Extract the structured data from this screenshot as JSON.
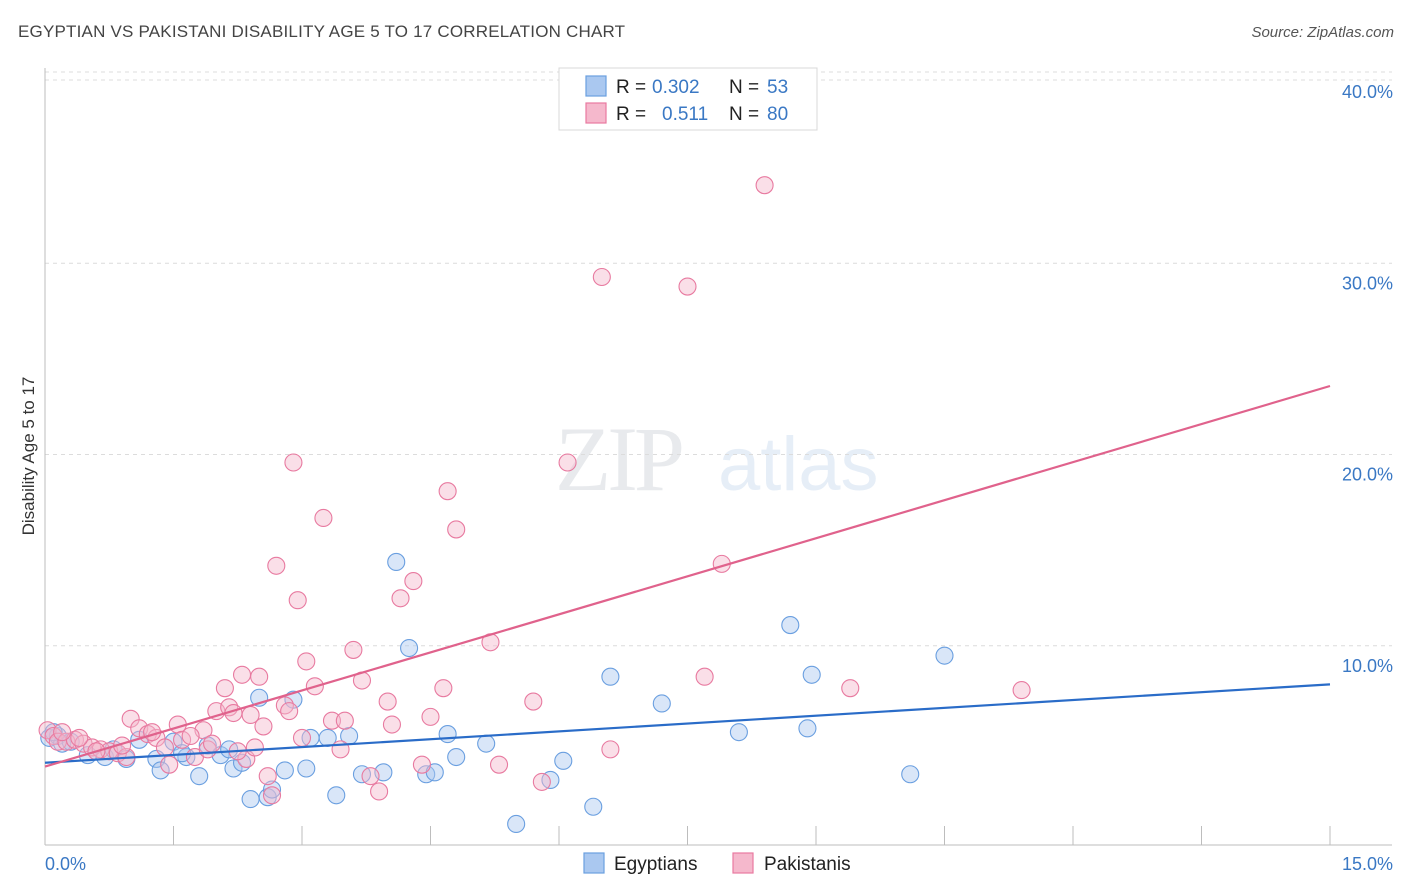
{
  "chart_data": {
    "type": "scatter",
    "title": "EGYPTIAN VS PAKISTANI DISABILITY AGE 5 TO 17 CORRELATION CHART",
    "source": "Source: ZipAtlas.com",
    "xlabel": "",
    "ylabel": "Disability Age 5 to 17",
    "xlim": [
      0,
      15
    ],
    "ylim": [
      0,
      40
    ],
    "x_tick_labels": [
      "0.0%",
      "15.0%"
    ],
    "y_ticks": [
      10,
      20,
      30,
      40
    ],
    "y_tick_labels": [
      "10.0%",
      "20.0%",
      "30.0%",
      "40.0%"
    ],
    "watermark": "ZIPatlas",
    "legend": {
      "rows": [
        {
          "r_label": "R =",
          "r_value": "0.302",
          "n_label": "N =",
          "n_value": "53"
        },
        {
          "r_label": "R =",
          "r_value": "0.511",
          "n_label": "N =",
          "n_value": "80"
        }
      ]
    },
    "bottom_legend": [
      "Egyptians",
      "Pakistanis"
    ],
    "series": [
      {
        "name": "Egyptians",
        "color": "#6a9fe0",
        "fill": "#aac8f0",
        "trend_color": "#2a6cc8",
        "trend": [
          [
            0,
            4.3
          ],
          [
            15,
            8.4
          ]
        ],
        "points": [
          [
            0.05,
            5.6
          ],
          [
            0.15,
            5.7
          ],
          [
            0.2,
            5.3
          ],
          [
            0.3,
            5.4
          ],
          [
            0.5,
            4.7
          ],
          [
            0.7,
            4.6
          ],
          [
            0.8,
            5.0
          ],
          [
            0.95,
            4.5
          ],
          [
            1.1,
            5.5
          ],
          [
            1.3,
            4.5
          ],
          [
            1.35,
            3.9
          ],
          [
            1.5,
            5.4
          ],
          [
            1.65,
            4.6
          ],
          [
            1.8,
            3.6
          ],
          [
            1.9,
            5.2
          ],
          [
            2.05,
            4.7
          ],
          [
            2.2,
            4.0
          ],
          [
            2.3,
            4.3
          ],
          [
            2.4,
            2.4
          ],
          [
            2.5,
            7.7
          ],
          [
            2.6,
            2.5
          ],
          [
            2.65,
            2.9
          ],
          [
            2.8,
            3.9
          ],
          [
            2.9,
            7.6
          ],
          [
            3.05,
            4.0
          ],
          [
            3.1,
            5.6
          ],
          [
            3.3,
            5.6
          ],
          [
            3.4,
            2.6
          ],
          [
            3.55,
            5.7
          ],
          [
            3.7,
            3.7
          ],
          [
            3.95,
            3.8
          ],
          [
            4.1,
            14.8
          ],
          [
            4.25,
            10.3
          ],
          [
            4.45,
            3.7
          ],
          [
            4.55,
            3.8
          ],
          [
            4.7,
            5.8
          ],
          [
            4.8,
            4.6
          ],
          [
            5.15,
            5.3
          ],
          [
            5.5,
            1.1
          ],
          [
            5.9,
            3.4
          ],
          [
            6.05,
            4.4
          ],
          [
            6.4,
            2.0
          ],
          [
            6.6,
            8.8
          ],
          [
            7.2,
            7.4
          ],
          [
            8.1,
            5.9
          ],
          [
            8.7,
            11.5
          ],
          [
            8.9,
            6.1
          ],
          [
            8.95,
            8.9
          ],
          [
            10.1,
            3.7
          ],
          [
            10.5,
            9.9
          ],
          [
            0.1,
            5.9
          ],
          [
            1.6,
            4.8
          ],
          [
            2.15,
            5.0
          ]
        ]
      },
      {
        "name": "Pakistanis",
        "color": "#e87aa0",
        "fill": "#f5b8cc",
        "trend_color": "#e0628c",
        "trend": [
          [
            0,
            4.1
          ],
          [
            15,
            24.0
          ]
        ],
        "points": [
          [
            0.03,
            6.0
          ],
          [
            0.1,
            5.7
          ],
          [
            0.15,
            5.4
          ],
          [
            0.25,
            5.4
          ],
          [
            0.35,
            5.5
          ],
          [
            0.45,
            5.3
          ],
          [
            0.55,
            5.1
          ],
          [
            0.65,
            5.0
          ],
          [
            0.75,
            4.9
          ],
          [
            0.85,
            4.8
          ],
          [
            0.95,
            4.6
          ],
          [
            1.0,
            6.6
          ],
          [
            1.1,
            6.1
          ],
          [
            1.2,
            5.8
          ],
          [
            1.3,
            5.6
          ],
          [
            1.4,
            5.1
          ],
          [
            1.45,
            4.2
          ],
          [
            1.55,
            6.3
          ],
          [
            1.6,
            5.5
          ],
          [
            1.75,
            4.6
          ],
          [
            1.85,
            6.0
          ],
          [
            1.9,
            5.0
          ],
          [
            1.95,
            5.3
          ],
          [
            2.0,
            7.0
          ],
          [
            2.1,
            8.2
          ],
          [
            2.15,
            7.2
          ],
          [
            2.2,
            6.9
          ],
          [
            2.3,
            8.9
          ],
          [
            2.35,
            4.5
          ],
          [
            2.4,
            6.8
          ],
          [
            2.5,
            8.8
          ],
          [
            2.55,
            6.2
          ],
          [
            2.6,
            3.6
          ],
          [
            2.65,
            2.6
          ],
          [
            2.7,
            14.6
          ],
          [
            2.8,
            7.3
          ],
          [
            2.85,
            7.0
          ],
          [
            2.9,
            20.0
          ],
          [
            2.95,
            12.8
          ],
          [
            3.05,
            9.6
          ],
          [
            3.15,
            8.3
          ],
          [
            3.25,
            17.1
          ],
          [
            3.35,
            6.5
          ],
          [
            3.5,
            6.5
          ],
          [
            3.6,
            10.2
          ],
          [
            3.7,
            8.6
          ],
          [
            3.8,
            3.6
          ],
          [
            3.9,
            2.8
          ],
          [
            4.0,
            7.5
          ],
          [
            4.05,
            6.3
          ],
          [
            4.15,
            12.9
          ],
          [
            4.3,
            13.8
          ],
          [
            4.4,
            4.2
          ],
          [
            4.5,
            6.7
          ],
          [
            4.65,
            8.2
          ],
          [
            4.7,
            18.5
          ],
          [
            4.8,
            16.5
          ],
          [
            5.2,
            10.6
          ],
          [
            5.3,
            4.2
          ],
          [
            5.7,
            7.5
          ],
          [
            5.8,
            3.3
          ],
          [
            6.1,
            20.0
          ],
          [
            6.5,
            29.7
          ],
          [
            6.6,
            5.0
          ],
          [
            7.5,
            29.2
          ],
          [
            7.7,
            8.8
          ],
          [
            7.9,
            14.7
          ],
          [
            8.4,
            34.5
          ],
          [
            9.4,
            8.2
          ],
          [
            11.4,
            8.1
          ],
          [
            0.2,
            5.9
          ],
          [
            0.4,
            5.6
          ],
          [
            0.6,
            4.9
          ],
          [
            0.9,
            5.2
          ],
          [
            1.25,
            5.9
          ],
          [
            1.7,
            5.7
          ],
          [
            2.45,
            5.1
          ],
          [
            3.0,
            5.6
          ],
          [
            3.45,
            5.0
          ],
          [
            2.25,
            4.9
          ]
        ]
      }
    ]
  }
}
